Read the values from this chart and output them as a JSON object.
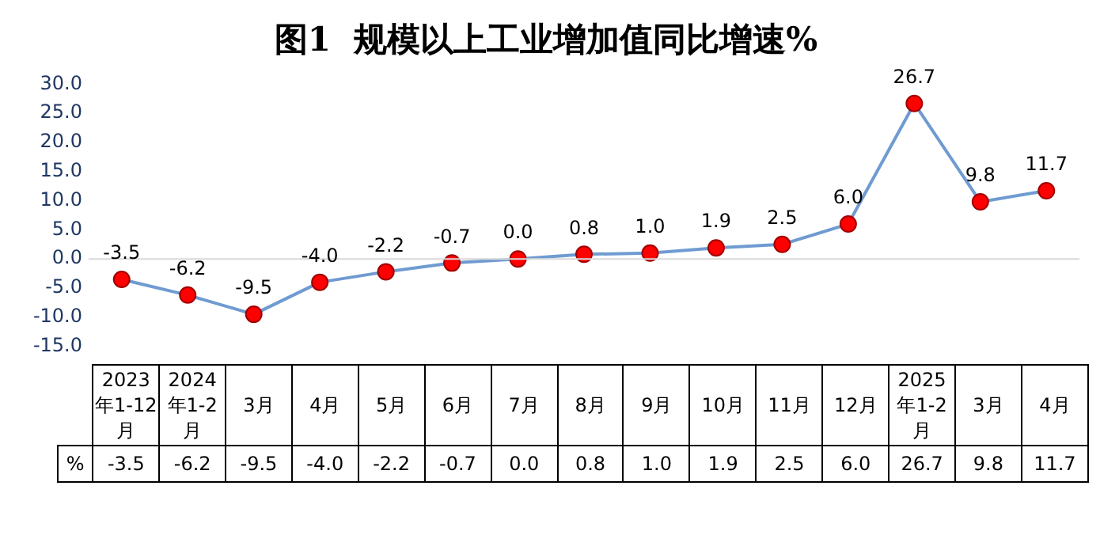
{
  "chart_data": {
    "type": "line",
    "title": "图1  规模以上工业增加值同比增速%",
    "categories": [
      "2023年1-12月",
      "2024年1-2月",
      "3月",
      "4月",
      "5月",
      "6月",
      "7月",
      "8月",
      "9月",
      "10月",
      "11月",
      "12月",
      "2025年1-2月",
      "3月",
      "4月"
    ],
    "series": [
      {
        "name": "%",
        "color": "#6f9bd1",
        "values": [
          -3.5,
          -6.2,
          -9.5,
          -4.0,
          -2.2,
          -0.7,
          0.0,
          0.8,
          1.0,
          1.9,
          2.5,
          6.0,
          26.7,
          9.8,
          11.7
        ],
        "value_labels": [
          "-3.5",
          "-6.2",
          "-9.5",
          "-4.0",
          "-2.2",
          "-0.7",
          "0.0",
          "0.8",
          "1.0",
          "1.9",
          "2.5",
          "6.0",
          "26.7",
          "9.8",
          "11.7"
        ]
      }
    ],
    "ylim": [
      -15,
      30
    ],
    "yticks": [
      {
        "value": -15,
        "label": "-15.0"
      },
      {
        "value": -10,
        "label": "-10.0"
      },
      {
        "value": -5,
        "label": "-5.0"
      },
      {
        "value": 0,
        "label": "0.0"
      },
      {
        "value": 5,
        "label": "5.0"
      },
      {
        "value": 10,
        "label": "10.0"
      },
      {
        "value": 15,
        "label": "15.0"
      },
      {
        "value": 20,
        "label": "20.0"
      },
      {
        "value": 25,
        "label": "25.0"
      },
      {
        "value": 30,
        "label": "30.0"
      }
    ],
    "ref_lines": [
      {
        "axis": "y",
        "value": 0,
        "color": "#d9d9d9"
      }
    ],
    "grid": false,
    "marker": "circle",
    "line_style": "solid",
    "legend": false
  }
}
